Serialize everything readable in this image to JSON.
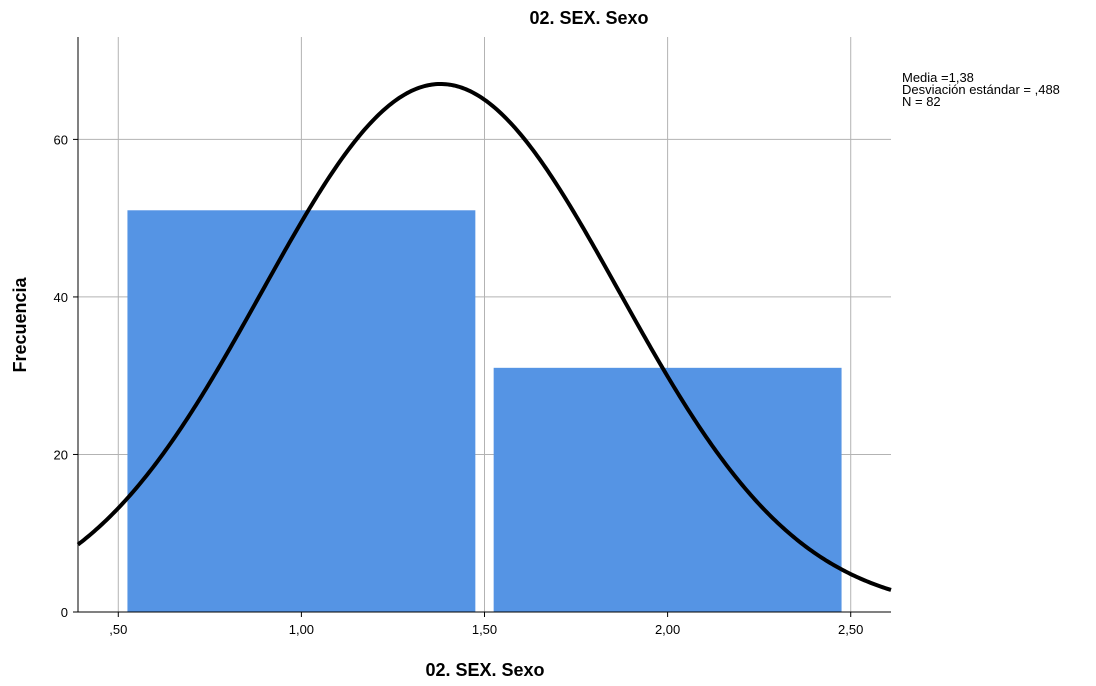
{
  "chart_data": {
    "type": "bar",
    "title": "02. SEX. Sexo",
    "xlabel": "02. SEX. Sexo",
    "ylabel": "Frecuencia",
    "xlim": [
      0.39,
      2.61
    ],
    "ylim": [
      0,
      73
    ],
    "x_ticks": [
      0.5,
      1.0,
      1.5,
      2.0,
      2.5
    ],
    "x_tick_labels": [
      ",50",
      "1,00",
      "1,50",
      "2,00",
      "2,50"
    ],
    "y_ticks": [
      0,
      20,
      40,
      60
    ],
    "y_tick_labels": [
      "0",
      "20",
      "40",
      "60"
    ],
    "bars": [
      {
        "x_start": 0.525,
        "x_end": 1.475,
        "value": 51
      },
      {
        "x_start": 1.525,
        "x_end": 2.475,
        "value": 31
      }
    ],
    "normal_curve": {
      "mean": 1.38,
      "sd": 0.488,
      "n": 82,
      "bin_width": 1.0
    },
    "grid": true,
    "bar_color": "#5594e4",
    "curve_color": "#000000"
  },
  "legend": {
    "line1": "Media =1,38",
    "line2": "Desviación estándar = ,488",
    "line3": "N = 82"
  }
}
